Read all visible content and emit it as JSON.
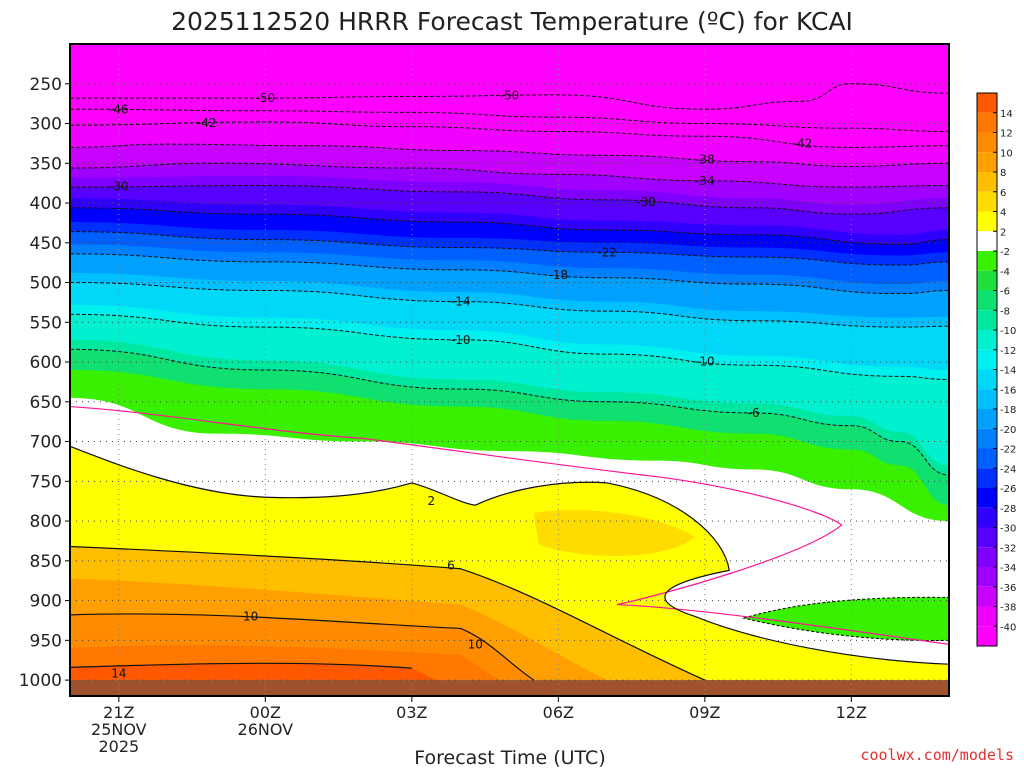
{
  "chart_data": {
    "type": "heatmap",
    "title": "2025112520 HRRR Forecast Temperature (ºC) for KCAI",
    "xlabel": "Forecast Time (UTC)",
    "credit": "coolwx.com/models",
    "x_ticks": [
      {
        "h": 0,
        "lines": [
          "21Z",
          "25NOV",
          "2025"
        ]
      },
      {
        "h": 3,
        "lines": [
          "00Z",
          "26NOV"
        ]
      },
      {
        "h": 6,
        "lines": [
          "03Z"
        ]
      },
      {
        "h": 9,
        "lines": [
          "06Z"
        ]
      },
      {
        "h": 12,
        "lines": [
          "09Z"
        ]
      },
      {
        "h": 15,
        "lines": [
          "12Z"
        ]
      }
    ],
    "x_range": [
      -1,
      17
    ],
    "y_levels": [
      250,
      300,
      350,
      400,
      450,
      500,
      550,
      600,
      650,
      700,
      750,
      800,
      850,
      900,
      950,
      1000
    ],
    "y_range_hPa": [
      200,
      1020
    ],
    "colorbar": {
      "labels": [
        "14",
        "12",
        "10",
        "8",
        "6",
        "4",
        "2",
        "-2",
        "-4",
        "-6",
        "-8",
        "-10",
        "-12",
        "-14",
        "-16",
        "-18",
        "-20",
        "-22",
        "-24",
        "-26",
        "-28",
        "-30",
        "-32",
        "-34",
        "-36",
        "-38",
        "-40"
      ],
      "colors": [
        "#ff5800",
        "#ff7800",
        "#ff8c00",
        "#ffa000",
        "#ffbe00",
        "#ffdc00",
        "#ffff00",
        "#ffffff",
        "#38f000",
        "#20e040",
        "#10e070",
        "#00e8a0",
        "#00f0d0",
        "#00f0f0",
        "#00d8f8",
        "#00c0ff",
        "#00a0ff",
        "#0080ff",
        "#0060ff",
        "#0030ff",
        "#0000ff",
        "#3000ff",
        "#5800ff",
        "#8000ff",
        "#a000ff",
        "#c800ff",
        "#f000ff",
        "#ff00ff"
      ]
    },
    "contours": [
      {
        "value": -50,
        "points": [
          [
            -1,
            268
          ],
          [
            3,
            268
          ],
          [
            6,
            266
          ],
          [
            9,
            264
          ],
          [
            12,
            282
          ],
          [
            14,
            272
          ],
          [
            15,
            250
          ],
          [
            17,
            262
          ]
        ],
        "labels": [
          {
            "text": "-50",
            "h": 3
          },
          {
            "text": "-50",
            "h": 8
          }
        ]
      },
      {
        "value": -46,
        "points": [
          [
            -1,
            282
          ],
          [
            3,
            284
          ],
          [
            6,
            286
          ],
          [
            9,
            292
          ],
          [
            12,
            300
          ],
          [
            15,
            306
          ],
          [
            17,
            310
          ]
        ],
        "labels": [
          {
            "text": "-46",
            "h": 0
          }
        ]
      },
      {
        "value": -42,
        "points": [
          [
            -1,
            302
          ],
          [
            3,
            298
          ],
          [
            6,
            304
          ],
          [
            9,
            310
          ],
          [
            12,
            316
          ],
          [
            15,
            330
          ],
          [
            17,
            328
          ]
        ],
        "labels": [
          {
            "text": "-42",
            "h": 1.8
          },
          {
            "text": "-42",
            "h": 14
          }
        ]
      },
      {
        "value": -38,
        "points": [
          [
            -1,
            330
          ],
          [
            1,
            326
          ],
          [
            4,
            328
          ],
          [
            7,
            334
          ],
          [
            10,
            340
          ],
          [
            13,
            348
          ],
          [
            15,
            354
          ],
          [
            17,
            350
          ]
        ],
        "labels": [
          {
            "text": "-38",
            "h": 12
          }
        ]
      },
      {
        "value": -34,
        "points": [
          [
            -1,
            356
          ],
          [
            2,
            350
          ],
          [
            6,
            356
          ],
          [
            9,
            364
          ],
          [
            12,
            372
          ],
          [
            15,
            380
          ],
          [
            17,
            378
          ]
        ],
        "labels": [
          {
            "text": "-34",
            "h": 12
          }
        ]
      },
      {
        "value": -30,
        "points": [
          [
            -1,
            380
          ],
          [
            3,
            378
          ],
          [
            7,
            386
          ],
          [
            10,
            396
          ],
          [
            13,
            406
          ],
          [
            15,
            414
          ],
          [
            17,
            406
          ]
        ],
        "labels": [
          {
            "text": "-30",
            "h": 0
          },
          {
            "text": "-30",
            "h": 10.8
          }
        ]
      },
      {
        "value": -26,
        "points": [
          [
            -1,
            406
          ],
          [
            3,
            414
          ],
          [
            7,
            424
          ],
          [
            10,
            434
          ],
          [
            13,
            440
          ],
          [
            16,
            452
          ],
          [
            17,
            446
          ]
        ],
        "labels": []
      },
      {
        "value": -22,
        "points": [
          [
            -1,
            436
          ],
          [
            3,
            446
          ],
          [
            7,
            456
          ],
          [
            10,
            462
          ],
          [
            13,
            468
          ],
          [
            16,
            478
          ],
          [
            17,
            474
          ]
        ],
        "labels": [
          {
            "text": "-22",
            "h": 10
          }
        ]
      },
      {
        "value": -18,
        "points": [
          [
            -1,
            464
          ],
          [
            3,
            474
          ],
          [
            7,
            484
          ],
          [
            10,
            494
          ],
          [
            13,
            502
          ],
          [
            16,
            514
          ],
          [
            17,
            510
          ]
        ],
        "labels": [
          {
            "text": "-18",
            "h": 9
          }
        ]
      },
      {
        "value": -14,
        "points": [
          [
            -1,
            500
          ],
          [
            3,
            510
          ],
          [
            7,
            524
          ],
          [
            10,
            536
          ],
          [
            13,
            548
          ],
          [
            16,
            556
          ],
          [
            17,
            555
          ]
        ],
        "labels": [
          {
            "text": "-14",
            "h": 7
          }
        ]
      },
      {
        "value": -10,
        "points": [
          [
            -1,
            540
          ],
          [
            3,
            556
          ],
          [
            7,
            572
          ],
          [
            10,
            590
          ],
          [
            13,
            604
          ],
          [
            16,
            618
          ],
          [
            17,
            622
          ]
        ],
        "labels": [
          {
            "text": "-10",
            "h": 7
          },
          {
            "text": "-10",
            "h": 12
          }
        ]
      },
      {
        "value": -6,
        "points": [
          [
            -1,
            584
          ],
          [
            3,
            610
          ],
          [
            7,
            634
          ],
          [
            10,
            650
          ],
          [
            13,
            664
          ],
          [
            15,
            680
          ],
          [
            16,
            700
          ],
          [
            17,
            742
          ]
        ],
        "labels": [
          {
            "text": "-6",
            "h": 13
          }
        ]
      }
    ]
  }
}
